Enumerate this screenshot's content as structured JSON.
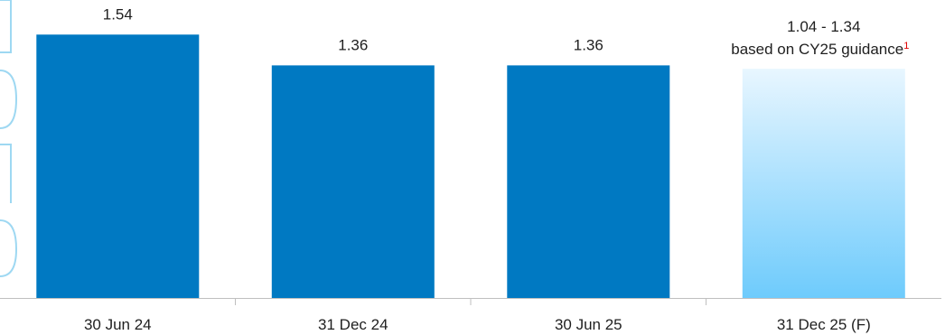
{
  "chart_data": {
    "type": "bar",
    "categories": [
      "30 Jun 24",
      "31 Dec 24",
      "30 Jun 25",
      "31 Dec 25 (F)"
    ],
    "series": [
      {
        "values": [
          1.54,
          1.36,
          1.36,
          1.34
        ],
        "range_low": [
          null,
          null,
          null,
          1.04
        ],
        "forecast": [
          false,
          false,
          false,
          true
        ]
      }
    ],
    "data_labels": [
      "1.54",
      "1.36",
      "1.36",
      "1.04 - 1.34"
    ],
    "annotation": {
      "text": "based on CY25 guidance",
      "superscript": "1"
    },
    "title": "",
    "xlabel": "",
    "ylabel": "",
    "ylim": [
      0,
      1.6
    ],
    "grid": false,
    "legend": "none",
    "colors": {
      "bar": "#0079C2",
      "forecast_top": "#E8F6FF",
      "forecast_bottom": "#6ECBFC",
      "axis": "#BFBFBF",
      "text": "#1F1F1F",
      "superscript": "#E00000"
    }
  }
}
